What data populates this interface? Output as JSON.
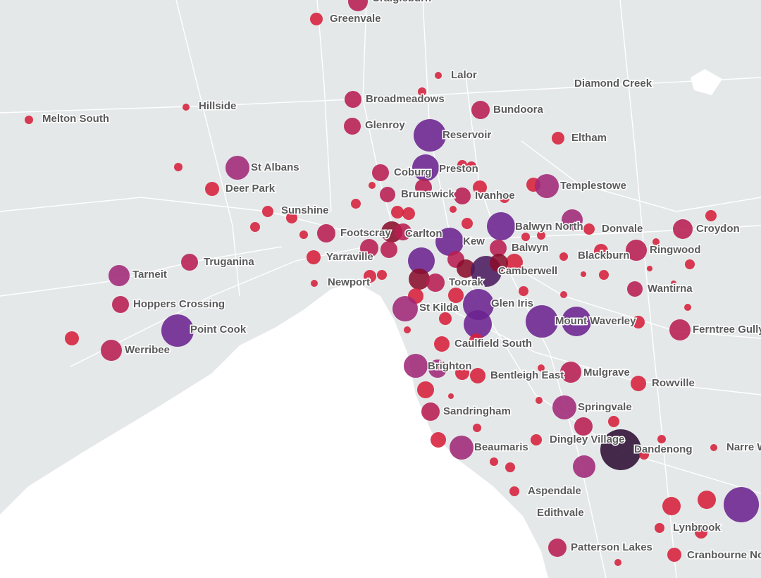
{
  "places": [
    {
      "name": "Craigieburn"
    },
    {
      "name": "Greenvale"
    },
    {
      "name": "Lalor"
    },
    {
      "name": "Diamond Creek"
    },
    {
      "name": "Broadmeadows"
    },
    {
      "name": "Hillside"
    },
    {
      "name": "Bundoora"
    },
    {
      "name": "Melton South"
    },
    {
      "name": "Glenroy"
    },
    {
      "name": "Reservoir"
    },
    {
      "name": "Eltham"
    },
    {
      "name": "St Albans"
    },
    {
      "name": "Coburg"
    },
    {
      "name": "Preston"
    },
    {
      "name": "Deer Park"
    },
    {
      "name": "Templestowe"
    },
    {
      "name": "Brunswick"
    },
    {
      "name": "Ivanhoe"
    },
    {
      "name": "Sunshine"
    },
    {
      "name": "Balwyn North"
    },
    {
      "name": "Donvale"
    },
    {
      "name": "Croydon"
    },
    {
      "name": "Footscray"
    },
    {
      "name": "Carlton"
    },
    {
      "name": "Kew"
    },
    {
      "name": "Balwyn"
    },
    {
      "name": "Ringwood"
    },
    {
      "name": "Yarraville"
    },
    {
      "name": "Blackburn"
    },
    {
      "name": "Truganina"
    },
    {
      "name": "Camberwell"
    },
    {
      "name": "Tarneit"
    },
    {
      "name": "Toorak"
    },
    {
      "name": "Newport"
    },
    {
      "name": "Wantirna"
    },
    {
      "name": "Hoppers Crossing"
    },
    {
      "name": "Glen Iris"
    },
    {
      "name": "St Kilda"
    },
    {
      "name": "Mount Waverley"
    },
    {
      "name": "Ferntree Gully"
    },
    {
      "name": "Point Cook"
    },
    {
      "name": "Caulfield South"
    },
    {
      "name": "Werribee"
    },
    {
      "name": "Brighton"
    },
    {
      "name": "Bentleigh East"
    },
    {
      "name": "Mulgrave"
    },
    {
      "name": "Rowville"
    },
    {
      "name": "Springvale"
    },
    {
      "name": "Sandringham"
    },
    {
      "name": "Dingley Village"
    },
    {
      "name": "Beaumaris"
    },
    {
      "name": "Dandenong"
    },
    {
      "name": "Narre Warren"
    },
    {
      "name": "Aspendale"
    },
    {
      "name": "Edithvale"
    },
    {
      "name": "Lynbrook"
    },
    {
      "name": "Patterson Lakes"
    },
    {
      "name": "Cranbourne North"
    }
  ]
}
